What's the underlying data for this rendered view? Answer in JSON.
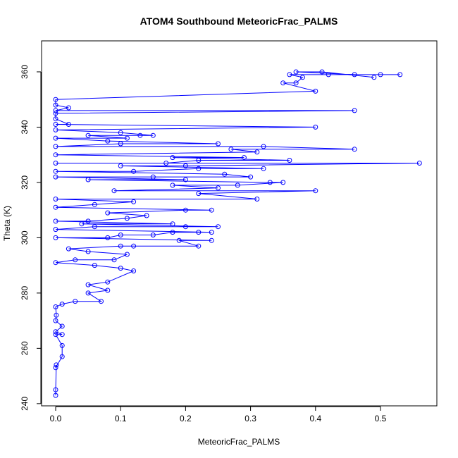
{
  "chart_data": {
    "type": "scatter",
    "title": "ATOM4 Southbound MeteoricFrac_PALMS",
    "xlabel": "MeteoricFrac_PALMS",
    "ylabel": "Theta (K)",
    "xlim": [
      0.0,
      0.56
    ],
    "ylim": [
      242,
      360
    ],
    "xticks": [
      0.0,
      0.1,
      0.2,
      0.3,
      0.4,
      0.5
    ],
    "xtick_labels": [
      "0.0",
      "0.1",
      "0.2",
      "0.3",
      "0.4",
      "0.5"
    ],
    "yticks": [
      240,
      260,
      280,
      300,
      320,
      340,
      360
    ],
    "ytick_labels": [
      "240",
      "260",
      "280",
      "300",
      "320",
      "340",
      "360"
    ],
    "grid": false,
    "color": "#0000ff",
    "marker": "open-circle",
    "connected": true,
    "series": [
      {
        "points": [
          [
            0.0,
            243
          ],
          [
            0.0,
            245
          ],
          [
            0.001,
            254
          ],
          [
            0.0,
            253
          ],
          [
            0.01,
            257
          ],
          [
            0.01,
            261
          ],
          [
            0.0,
            265
          ],
          [
            0.01,
            265
          ],
          [
            0.0,
            266
          ],
          [
            0.01,
            268
          ],
          [
            0.0,
            270
          ],
          [
            0.001,
            272
          ],
          [
            0.0,
            275
          ],
          [
            0.01,
            276
          ],
          [
            0.03,
            277
          ],
          [
            0.07,
            277
          ],
          [
            0.05,
            280
          ],
          [
            0.08,
            281
          ],
          [
            0.05,
            283
          ],
          [
            0.08,
            284
          ],
          [
            0.12,
            288
          ],
          [
            0.1,
            289
          ],
          [
            0.06,
            290
          ],
          [
            0.0,
            291
          ],
          [
            0.03,
            292
          ],
          [
            0.09,
            292
          ],
          [
            0.11,
            294
          ],
          [
            0.05,
            295
          ],
          [
            0.02,
            296
          ],
          [
            0.1,
            297
          ],
          [
            0.12,
            297
          ],
          [
            0.22,
            297
          ],
          [
            0.19,
            299
          ],
          [
            0.24,
            299
          ],
          [
            0.0,
            300
          ],
          [
            0.08,
            300
          ],
          [
            0.1,
            301
          ],
          [
            0.15,
            301
          ],
          [
            0.18,
            302
          ],
          [
            0.22,
            302
          ],
          [
            0.24,
            302
          ],
          [
            0.0,
            303
          ],
          [
            0.06,
            304
          ],
          [
            0.2,
            304
          ],
          [
            0.25,
            304
          ],
          [
            0.04,
            305
          ],
          [
            0.18,
            305
          ],
          [
            0.0,
            306
          ],
          [
            0.05,
            306
          ],
          [
            0.11,
            307
          ],
          [
            0.14,
            308
          ],
          [
            0.08,
            309
          ],
          [
            0.2,
            310
          ],
          [
            0.24,
            310
          ],
          [
            0.0,
            311
          ],
          [
            0.06,
            312
          ],
          [
            0.12,
            313
          ],
          [
            0.0,
            314
          ],
          [
            0.31,
            314
          ],
          [
            0.22,
            316
          ],
          [
            0.4,
            317
          ],
          [
            0.09,
            317
          ],
          [
            0.25,
            318
          ],
          [
            0.18,
            319
          ],
          [
            0.28,
            319
          ],
          [
            0.35,
            320
          ],
          [
            0.33,
            320
          ],
          [
            0.05,
            321
          ],
          [
            0.2,
            321
          ],
          [
            0.0,
            322
          ],
          [
            0.15,
            322
          ],
          [
            0.3,
            322
          ],
          [
            0.26,
            323
          ],
          [
            0.0,
            324
          ],
          [
            0.12,
            324
          ],
          [
            0.22,
            325
          ],
          [
            0.32,
            325
          ],
          [
            0.1,
            326
          ],
          [
            0.2,
            326
          ],
          [
            0.56,
            327
          ],
          [
            0.0,
            327
          ],
          [
            0.17,
            327
          ],
          [
            0.22,
            328
          ],
          [
            0.36,
            328
          ],
          [
            0.18,
            329
          ],
          [
            0.29,
            329
          ],
          [
            0.0,
            330
          ],
          [
            0.31,
            331
          ],
          [
            0.27,
            332
          ],
          [
            0.46,
            332
          ],
          [
            0.32,
            333
          ],
          [
            0.0,
            333
          ],
          [
            0.1,
            334
          ],
          [
            0.25,
            334
          ],
          [
            0.08,
            335
          ],
          [
            0.0,
            336
          ],
          [
            0.11,
            336
          ],
          [
            0.05,
            337
          ],
          [
            0.13,
            337
          ],
          [
            0.15,
            337
          ],
          [
            0.1,
            338
          ],
          [
            0.0,
            339
          ],
          [
            0.4,
            340
          ],
          [
            0.0,
            341
          ],
          [
            0.02,
            341
          ],
          [
            0.0,
            343
          ],
          [
            0.0,
            345
          ],
          [
            0.46,
            346
          ],
          [
            0.0,
            346
          ],
          [
            0.02,
            347
          ],
          [
            0.0,
            348
          ],
          [
            0.0,
            350
          ],
          [
            0.4,
            353
          ],
          [
            0.35,
            356
          ],
          [
            0.37,
            356
          ],
          [
            0.38,
            358
          ],
          [
            0.36,
            359
          ],
          [
            0.42,
            359
          ],
          [
            0.5,
            359
          ],
          [
            0.53,
            359
          ],
          [
            0.46,
            359
          ],
          [
            0.37,
            360
          ],
          [
            0.41,
            360
          ],
          [
            0.49,
            358
          ]
        ]
      }
    ]
  }
}
